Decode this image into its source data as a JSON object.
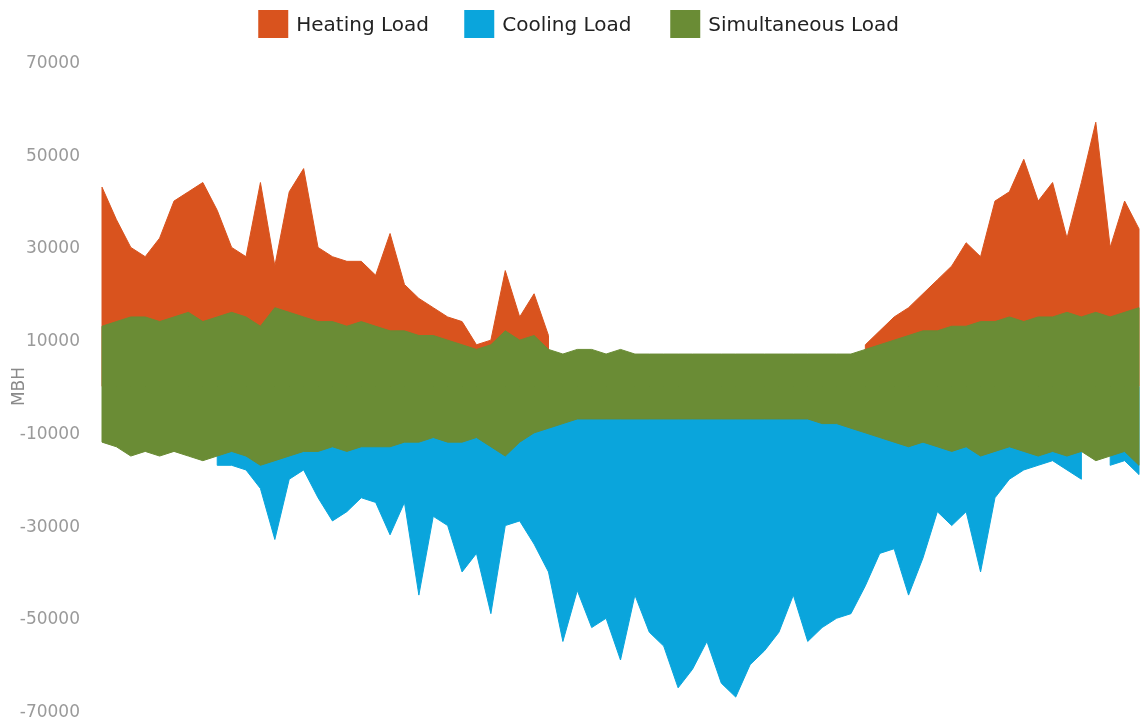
{
  "chart_data": {
    "type": "area",
    "ylabel": "MBH",
    "legend": "top",
    "tick_labels": "y",
    "categories": [
      null,
      null,
      null,
      null,
      null,
      null,
      null,
      null,
      null,
      null,
      null,
      null,
      null,
      null,
      null,
      null,
      null,
      null,
      null,
      null,
      null,
      null,
      null,
      null,
      null,
      null,
      null,
      null,
      null,
      null,
      null,
      null,
      null,
      null,
      null,
      null,
      null,
      null,
      null,
      null,
      null,
      null,
      null,
      null,
      null,
      null,
      null,
      null,
      null,
      null,
      null,
      null,
      null,
      null,
      null,
      null,
      null,
      null,
      null,
      null,
      null,
      null,
      null,
      null,
      null,
      null,
      null,
      null,
      null,
      null,
      null,
      null,
      null
    ],
    "ylim": [
      -70000,
      70000
    ],
    "yticks": [
      -70000,
      -50000,
      -30000,
      -10000,
      10000,
      30000,
      50000,
      70000
    ],
    "series": [
      {
        "name": "Heating Load",
        "color": "#d9531e",
        "values": [
          43000,
          36000,
          30000,
          28000,
          32000,
          40000,
          42000,
          44000,
          38000,
          30000,
          28000,
          44000,
          26000,
          42000,
          47000,
          30000,
          28000,
          27000,
          27000,
          24000,
          33000,
          22000,
          19000,
          17000,
          15000,
          14000,
          9000,
          10000,
          25000,
          15000,
          20000,
          11000,
          null,
          null,
          null,
          null,
          null,
          null,
          null,
          null,
          null,
          null,
          null,
          null,
          null,
          null,
          null,
          null,
          null,
          null,
          null,
          null,
          null,
          9000,
          12000,
          15000,
          17000,
          20000,
          23000,
          26000,
          31000,
          28000,
          40000,
          42000,
          49000,
          40000,
          44000,
          32000,
          44000,
          57000,
          30000,
          40000,
          34000
        ]
      },
      {
        "name": "Cooling Load",
        "color": "#0aa5dc",
        "values": [
          null,
          null,
          null,
          null,
          null,
          null,
          null,
          null,
          -17000,
          -17000,
          -18000,
          -22000,
          -33000,
          -20000,
          -18000,
          -24000,
          -29000,
          -27000,
          -24000,
          -25000,
          -32000,
          -25000,
          -45000,
          -28000,
          -30000,
          -40000,
          -36000,
          -49000,
          -30000,
          -29000,
          -34000,
          -40000,
          -55000,
          -44000,
          -52000,
          -50000,
          -59000,
          -45000,
          -53000,
          -56000,
          -65000,
          -61000,
          -55000,
          -64000,
          -67000,
          -60000,
          -57000,
          -53000,
          -45000,
          -55000,
          -52000,
          -50000,
          -49000,
          -43000,
          -36000,
          -35000,
          -45000,
          -37000,
          -27000,
          -30000,
          -27000,
          -40000,
          -24000,
          -20000,
          -18000,
          -17000,
          -16000,
          -18000,
          -20000,
          null,
          -17000,
          -16000,
          -19000
        ]
      },
      {
        "name": "Simultaneous Load",
        "color": "#6a8c35",
        "values": [
          13000,
          14000,
          15000,
          15000,
          14000,
          15000,
          16000,
          14000,
          15000,
          16000,
          15000,
          13000,
          17000,
          16000,
          15000,
          14000,
          14000,
          13000,
          14000,
          13000,
          12000,
          12000,
          11000,
          11000,
          10000,
          9000,
          8000,
          9000,
          12000,
          10000,
          11000,
          8000,
          7000,
          8000,
          8000,
          7000,
          8000,
          7000,
          7000,
          7000,
          7000,
          7000,
          7000,
          7000,
          7000,
          7000,
          7000,
          7000,
          7000,
          7000,
          7000,
          7000,
          7000,
          8000,
          9000,
          10000,
          11000,
          12000,
          12000,
          13000,
          13000,
          14000,
          14000,
          15000,
          14000,
          15000,
          15000,
          16000,
          15000,
          16000,
          15000,
          16000,
          17000
        ]
      },
      {
        "color": "#6a8c35",
        "values": [
          -12000,
          -13000,
          -15000,
          -14000,
          -15000,
          -14000,
          -15000,
          -16000,
          -15000,
          -14000,
          -15000,
          -17000,
          -16000,
          -15000,
          -14000,
          -14000,
          -13000,
          -14000,
          -13000,
          -13000,
          -13000,
          -12000,
          -12000,
          -11000,
          -12000,
          -12000,
          -11000,
          -13000,
          -15000,
          -12000,
          -10000,
          -9000,
          -8000,
          -7000,
          -7000,
          -7000,
          -7000,
          -7000,
          -7000,
          -7000,
          -7000,
          -7000,
          -7000,
          -7000,
          -7000,
          -7000,
          -7000,
          -7000,
          -7000,
          -7000,
          -8000,
          -8000,
          -9000,
          -10000,
          -11000,
          -12000,
          -13000,
          -12000,
          -13000,
          -14000,
          -13000,
          -15000,
          -14000,
          -13000,
          -14000,
          -15000,
          -14000,
          -15000,
          -14000,
          -16000,
          -15000,
          -14000,
          -17000
        ]
      }
    ]
  }
}
